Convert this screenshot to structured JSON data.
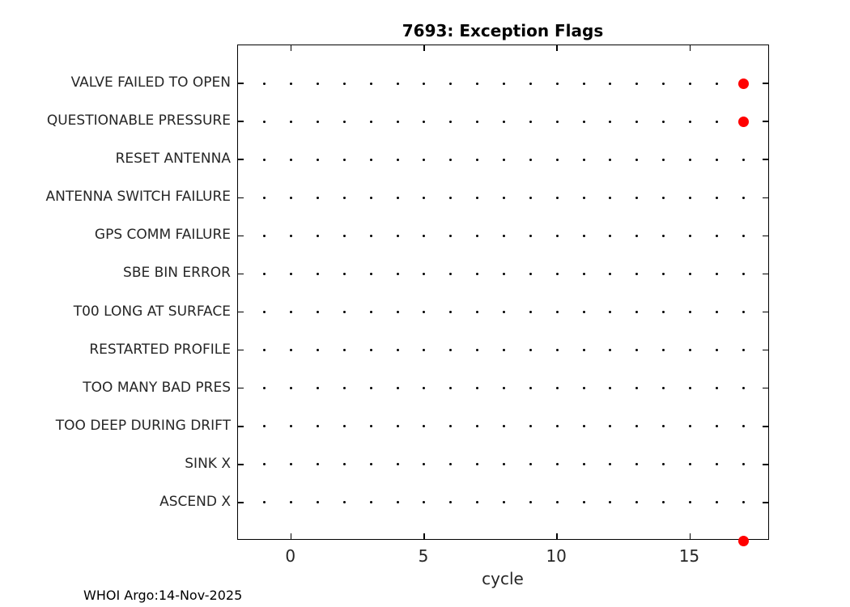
{
  "figure": {
    "footer": "WHOI Argo:14-Nov-2025"
  },
  "colors": {
    "flag_red": "#ff0000",
    "grid_dot": "#000000",
    "axis_text": "#262626",
    "frame": "#000000"
  },
  "chart_data": {
    "type": "scatter",
    "title": "7693: Exception Flags",
    "xlabel": "cycle",
    "ylabel": "",
    "xlim": [
      -2,
      18
    ],
    "ylim": [
      0,
      13
    ],
    "xticks": [
      0,
      5,
      10,
      15
    ],
    "grid": "dotted-marker-grid",
    "legend": "none",
    "dot_cycles": {
      "start": -1,
      "end": 17
    },
    "categories_top_down": [
      "VALVE FAILED TO OPEN",
      "QUESTIONABLE PRESSURE",
      "RESET ANTENNA",
      "ANTENNA SWITCH FAILURE",
      "GPS COMM FAILURE",
      "SBE BIN ERROR",
      "T00 LONG AT SURFACE",
      "RESTARTED PROFILE",
      "TOO MANY BAD PRES",
      "TOO DEEP DURING DRIFT",
      "SINK X",
      "ASCEND X"
    ],
    "flagged_points": [
      {
        "category": "VALVE FAILED TO OPEN",
        "cycle": 17
      },
      {
        "category": "QUESTIONABLE PRESSURE",
        "cycle": 17
      },
      {
        "category": null,
        "cycle": 17,
        "y": 0
      }
    ]
  }
}
